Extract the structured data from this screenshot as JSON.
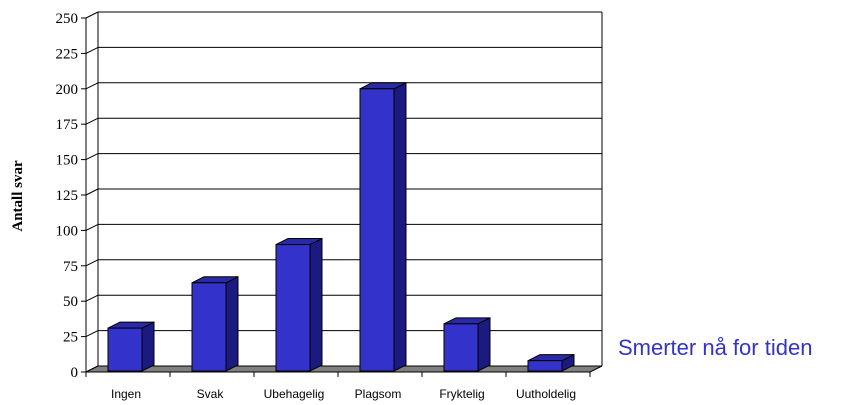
{
  "chart_data": {
    "type": "bar",
    "categories": [
      "Ingen",
      "Svak",
      "Ubehagelig",
      "Plagsom",
      "Fryktelig",
      "Uutholdelig"
    ],
    "values": [
      31,
      63,
      90,
      200,
      34,
      8
    ],
    "title": "Smerter nå for tiden",
    "xlabel": "",
    "ylabel": "Antall svar",
    "ylim": [
      0,
      250
    ],
    "yticks": [
      0,
      25,
      50,
      75,
      100,
      125,
      150,
      175,
      200,
      225,
      250
    ],
    "grid": true,
    "legend": "none",
    "colors": {
      "bar_front": "#3333cc",
      "bar_side": "#1a1a80",
      "bar_top": "#2a2aa8",
      "floor": "#808080",
      "title": "#3333cc"
    }
  }
}
